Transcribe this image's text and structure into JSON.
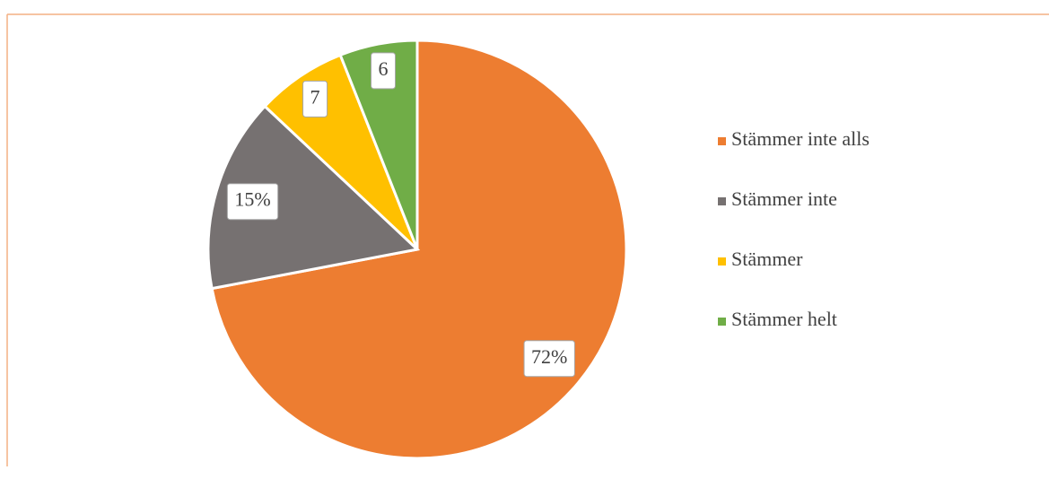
{
  "chart_data": {
    "type": "pie",
    "categories": [
      "Stämmer inte alls",
      "Stämmer inte",
      "Stämmer",
      "Stämmer helt"
    ],
    "values": [
      72,
      15,
      7,
      6
    ],
    "value_labels": [
      "72%",
      "15%",
      "7",
      "6"
    ],
    "colors": [
      "#ed7d31",
      "#767171",
      "#ffc000",
      "#70ad47"
    ],
    "legend": "right"
  }
}
